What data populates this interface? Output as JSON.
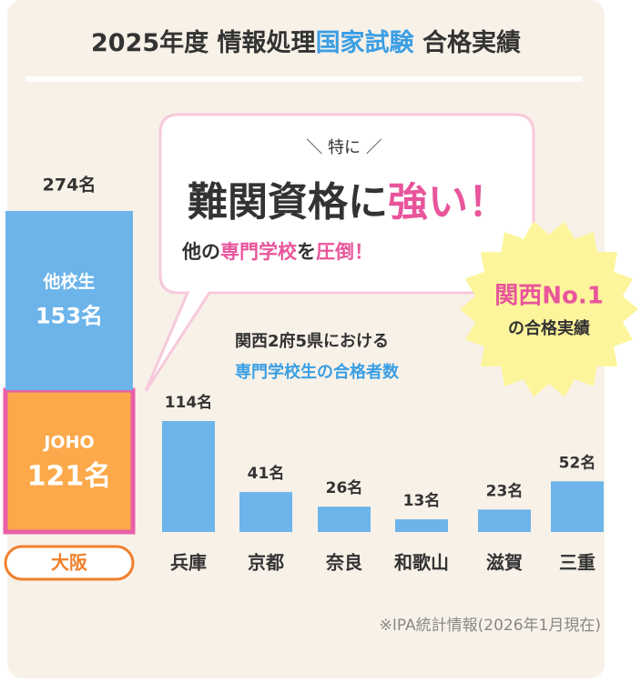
{
  "header": {
    "title_parts": [
      "2025年度 情報処理",
      "国家試験",
      " 合格実績"
    ]
  },
  "callout": {
    "lead": "＼ 特に ／",
    "headline_parts": [
      "難関資格に",
      "強い",
      "！"
    ],
    "sub_parts": [
      "他の",
      "専門学校",
      "を",
      "圧倒",
      "！"
    ]
  },
  "badge": {
    "line1": "関西No.1",
    "line2": "の合格実績"
  },
  "note": {
    "line1": "関西2府5県における",
    "line2": "専門学校生の合格者数"
  },
  "chart_data": {
    "type": "bar",
    "highlight": {
      "category": "大阪",
      "total": 274,
      "total_label": "274名",
      "segments": [
        {
          "name": "他校生",
          "value": 153,
          "value_label": "153名",
          "color": "#6cb4ea"
        },
        {
          "name": "JOHO",
          "value": 121,
          "value_label": "121名",
          "color": "#fba94a"
        }
      ]
    },
    "categories": [
      "兵庫",
      "京都",
      "奈良",
      "和歌山",
      "滋賀",
      "三重"
    ],
    "values": [
      114,
      41,
      26,
      13,
      23,
      52
    ],
    "value_labels": [
      "114名",
      "41名",
      "26名",
      "13名",
      "23名",
      "52名"
    ],
    "color": "#6cb4ea"
  },
  "footnote": "※IPA統計情報(2026年1月現在)"
}
